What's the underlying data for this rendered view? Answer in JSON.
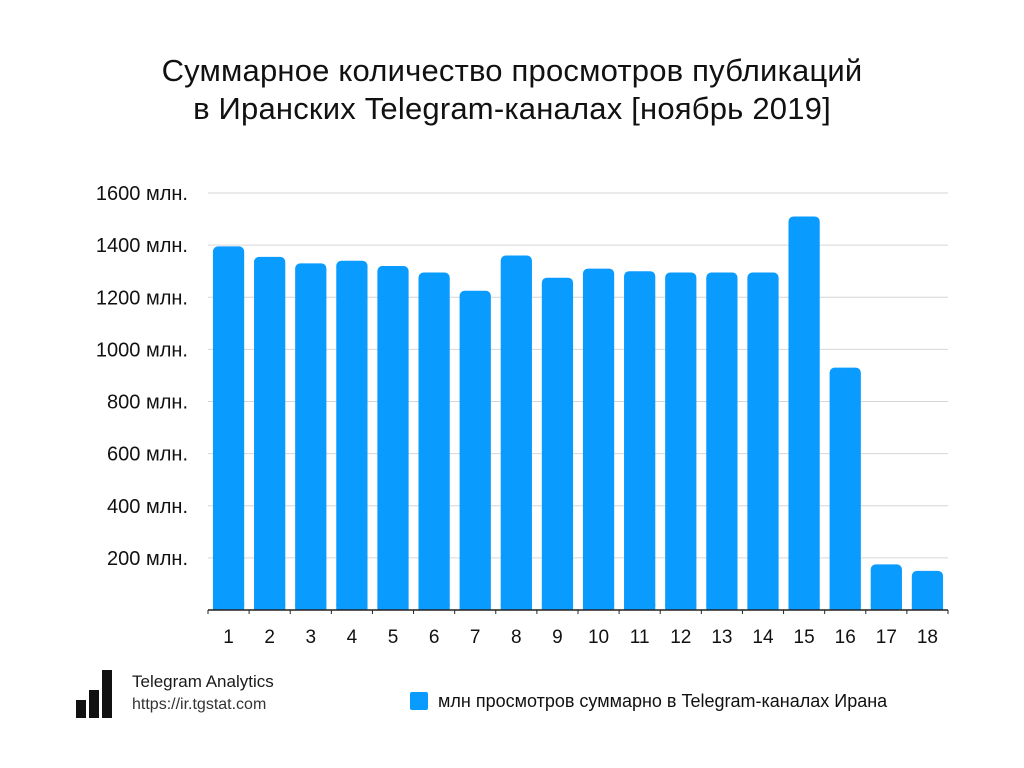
{
  "title_lines": [
    "Суммарное количество просмотров публикаций",
    "в Иранских Telegram-каналах [ноябрь 2019]"
  ],
  "logo": {
    "name": "Telegram Analytics",
    "url": "https://ir.tgstat.com",
    "icon": "bar-chart-logo-icon"
  },
  "legend": {
    "label": "млн просмотров суммарно в Telegram-каналах Ирана",
    "color": "#0a9bff"
  },
  "chart_data": {
    "type": "bar",
    "title": "Суммарное количество просмотров публикаций в Иранских Telegram-каналах [ноябрь 2019]",
    "xlabel": "",
    "ylabel": "",
    "categories": [
      "1",
      "2",
      "3",
      "4",
      "5",
      "6",
      "7",
      "8",
      "9",
      "10",
      "11",
      "12",
      "13",
      "14",
      "15",
      "16",
      "17",
      "18"
    ],
    "series": [
      {
        "name": "млн просмотров суммарно в Telegram-каналах Ирана",
        "color": "#0a9bff",
        "values": [
          1395,
          1355,
          1330,
          1340,
          1320,
          1295,
          1225,
          1360,
          1275,
          1310,
          1300,
          1295,
          1295,
          1295,
          1510,
          930,
          175,
          150
        ]
      }
    ],
    "ylim": [
      0,
      1600
    ],
    "yticks": [
      {
        "value": 200,
        "label": "200 млн."
      },
      {
        "value": 400,
        "label": "400 млн."
      },
      {
        "value": 600,
        "label": "600 млн."
      },
      {
        "value": 800,
        "label": "800 млн."
      },
      {
        "value": 1000,
        "label": "1000 млн."
      },
      {
        "value": 1200,
        "label": "1200 млн."
      },
      {
        "value": 1400,
        "label": "1400 млн."
      },
      {
        "value": 1600,
        "label": "1600 млн."
      }
    ],
    "grid": true,
    "legend_position": "bottom-right",
    "colors": {
      "bar": "#0a9bff",
      "grid": "#d6d6d6",
      "axis": "#222222"
    }
  }
}
